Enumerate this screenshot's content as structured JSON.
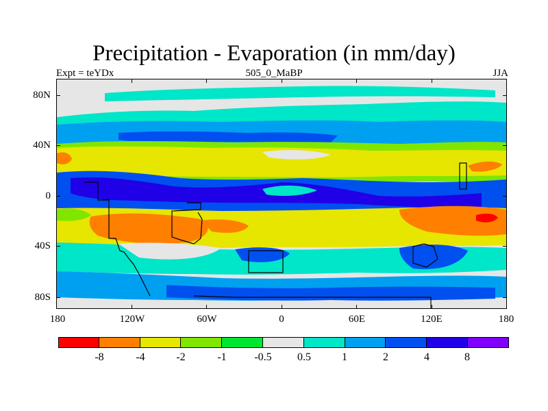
{
  "title": "Precipitation - Evaporation (in mm/day)",
  "subtitle_left": "Expt = teYDx",
  "subtitle_center": "505_0_MaBP",
  "subtitle_right": "JJA",
  "y_axis_labels": [
    "80N",
    "40N",
    "0",
    "40S",
    "80S"
  ],
  "x_axis_labels": [
    "180",
    "120W",
    "60W",
    "0",
    "60E",
    "120E",
    "180"
  ],
  "colorbar": {
    "colors": [
      "#ff0000",
      "#ff7f00",
      "#e6e600",
      "#80e600",
      "#00e632",
      "#e6e6e6",
      "#00e6c8",
      "#00a0f0",
      "#0050f0",
      "#2000e6",
      "#7f00ff"
    ],
    "labels": [
      "-8",
      "-4",
      "-2",
      "-1",
      "-0.5",
      "0.5",
      "1",
      "2",
      "4",
      "8"
    ]
  },
  "chart_data": {
    "type": "heatmap",
    "title": "Precipitation - Evaporation (in mm/day)",
    "subtitle": "505_0_MaBP",
    "xlabel": "",
    "ylabel": "",
    "xlim": [
      -180,
      180
    ],
    "ylim": [
      -90,
      90
    ],
    "x_ticks": [
      "180",
      "120W",
      "60W",
      "0",
      "60E",
      "120E",
      "180"
    ],
    "y_ticks": [
      "80N",
      "40N",
      "0",
      "40S",
      "80S"
    ],
    "contour_levels": [
      -8,
      -4,
      -2,
      -1,
      -0.5,
      0.5,
      1,
      2,
      4,
      8
    ],
    "fill_colors": [
      "#ff0000",
      "#ff7f00",
      "#e6e600",
      "#80e600",
      "#00e632",
      "#e6e6e6",
      "#00e6c8",
      "#00a0f0",
      "#0050f0",
      "#2000e6",
      "#7f00ff"
    ],
    "approximate_bands": [
      {
        "lat_range": [
          78,
          90
        ],
        "level": "near zero",
        "color": "#e6e6e6"
      },
      {
        "lat_range": [
          55,
          78
        ],
        "level": "0.5 to 1",
        "color": "#00e6c8"
      },
      {
        "lat_range": [
          42,
          55
        ],
        "level": "1 to 4",
        "color": "#00a0f0"
      },
      {
        "lat_range": [
          18,
          42
        ],
        "level": "-4 to -1",
        "color": "#e6e600"
      },
      {
        "lat_range": [
          -5,
          18
        ],
        "level": "2 to 8",
        "color": "#2000e6"
      },
      {
        "lat_range": [
          -35,
          -5
        ],
        "level": "-8 to -1",
        "color": "#ff7f00"
      },
      {
        "lat_range": [
          -55,
          -35
        ],
        "level": "0.5 to 1",
        "color": "#00e6c8"
      },
      {
        "lat_range": [
          -80,
          -55
        ],
        "level": "1 to 4",
        "color": "#0050f0"
      },
      {
        "lat_range": [
          -90,
          -80
        ],
        "level": "near zero",
        "color": "#e6e6e6"
      }
    ]
  }
}
